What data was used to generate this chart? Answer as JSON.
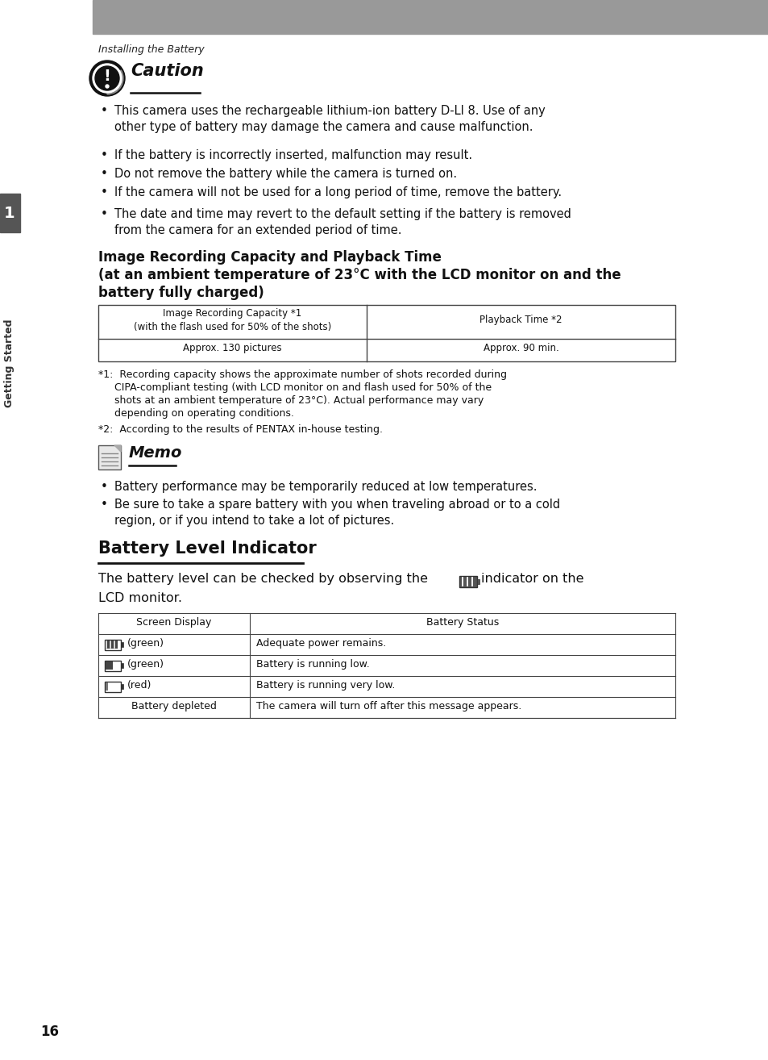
{
  "page_bg": "#ffffff",
  "header_bg": "#999999",
  "section_label_text": "1",
  "sidebar_text": "Getting Started",
  "page_num": "16",
  "italic_header": "Installing the Battery",
  "caution_title": "Caution",
  "caution_bullets": [
    "This camera uses the rechargeable lithium-ion battery D-LI 8. Use of any\nother type of battery may damage the camera and cause malfunction.",
    "If the battery is incorrectly inserted, malfunction may result.",
    "Do not remove the battery while the camera is turned on.",
    "If the camera will not be used for a long period of time, remove the battery.",
    "The date and time may revert to the default setting if the battery is removed\nfrom the camera for an extended period of time."
  ],
  "section_title_line1": "Image Recording Capacity and Playback Time",
  "section_title_line2": "(at an ambient temperature of 23°C with the LCD monitor on and the",
  "section_title_line3": "battery fully charged)",
  "table1_header_col1_line1": "Image Recording Capacity *1",
  "table1_header_col1_line2": "(with the flash used for 50% of the shots)",
  "table1_header_col2": "Playback Time *2",
  "table1_data_col1": "Approx. 130 pictures",
  "table1_data_col2": "Approx. 90 min.",
  "footnote1_line1": "*1:  Recording capacity shows the approximate number of shots recorded during",
  "footnote1_line2": "     CIPA-compliant testing (with LCD monitor on and flash used for 50% of the",
  "footnote1_line3": "     shots at an ambient temperature of 23°C). Actual performance may vary",
  "footnote1_line4": "     depending on operating conditions.",
  "footnote2": "*2:  According to the results of PENTAX in-house testing.",
  "memo_title": "Memo",
  "memo_bullets": [
    "Battery performance may be temporarily reduced at low temperatures.",
    "Be sure to take a spare battery with you when traveling abroad or to a cold\nregion, or if you intend to take a lot of pictures."
  ],
  "battery_section_title": "Battery Level Indicator",
  "battery_intro_part1": "The battery level can be checked by observing the",
  "battery_intro_part2": "indicator on the",
  "battery_intro_line2": "LCD monitor.",
  "table2_header": [
    "Screen Display",
    "Battery Status"
  ],
  "table2_rows": [
    [
      "(green)",
      "Adequate power remains."
    ],
    [
      "(green)",
      "Battery is running low."
    ],
    [
      "(red)",
      "Battery is running very low."
    ],
    [
      "Battery depleted",
      "The camera will turn off after this message appears."
    ]
  ]
}
